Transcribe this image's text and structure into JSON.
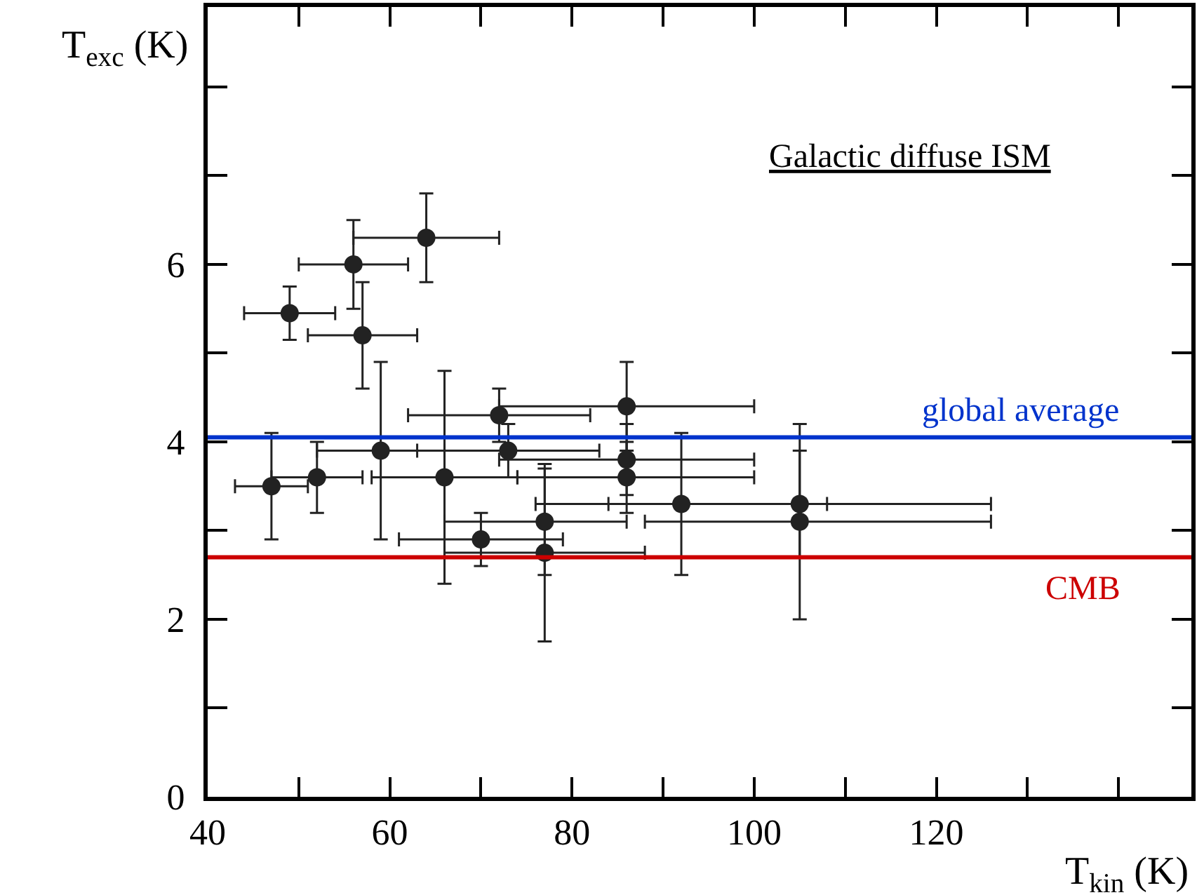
{
  "chart_data": {
    "type": "scatter",
    "xlabel": "T$_{kin}$ (K)",
    "ylabel": "T$_{exc}$ (K)",
    "annotations": [
      "Galactic diffuse ISM"
    ],
    "marker": "circle",
    "grid": false,
    "xlim": [
      40,
      148
    ],
    "xticks": [
      40,
      {
        "value": 50,
        "label": null
      },
      60,
      {
        "value": 70,
        "label": null
      },
      80,
      {
        "value": 90,
        "label": null
      },
      100,
      {
        "value": 110,
        "label": null
      },
      120,
      {
        "value": 130,
        "label": null
      },
      {
        "value": 140,
        "label": null
      }
    ],
    "ylim": [
      0,
      8.9
    ],
    "yticks": [
      0,
      {
        "value": 1,
        "label": null
      },
      2,
      {
        "value": 3,
        "label": null
      },
      4,
      {
        "value": 5,
        "label": null
      },
      6,
      {
        "value": 7,
        "label": null
      },
      {
        "value": 8,
        "label": null
      }
    ],
    "x": [
      49,
      56,
      64,
      57,
      47,
      52,
      59,
      66,
      72,
      73,
      70,
      77,
      77,
      86,
      86,
      86,
      92,
      105,
      105
    ],
    "series": [
      {
        "color": "#222222",
        "values": [
          5.45,
          6.0,
          6.3,
          5.2,
          3.5,
          3.6,
          3.9,
          3.6,
          4.3,
          3.9,
          2.9,
          3.1,
          2.75,
          4.4,
          3.8,
          3.6,
          3.3,
          3.3,
          3.1
        ],
        "errors": [
          [
            5.15,
            5.75
          ],
          [
            5.5,
            6.5
          ],
          [
            5.8,
            6.8
          ],
          [
            4.6,
            5.8
          ],
          [
            2.9,
            4.1
          ],
          [
            3.2,
            4.0
          ],
          [
            2.9,
            4.9
          ],
          [
            2.4,
            4.8
          ],
          [
            4.0,
            4.6
          ],
          [
            3.6,
            4.2
          ],
          [
            2.6,
            3.2
          ],
          [
            2.5,
            3.7
          ],
          [
            1.75,
            3.75
          ],
          [
            3.9,
            4.9
          ],
          [
            3.4,
            4.2
          ],
          [
            3.2,
            4.0
          ],
          [
            2.5,
            4.1
          ],
          [
            2.7,
            3.9
          ],
          [
            2.0,
            4.2
          ]
        ],
        "xerrors": [
          [
            44,
            54
          ],
          [
            50,
            62
          ],
          [
            56,
            72
          ],
          [
            51,
            63
          ],
          [
            43,
            51
          ],
          [
            47,
            57
          ],
          [
            52,
            66
          ],
          [
            58,
            74
          ],
          [
            62,
            82
          ],
          [
            63,
            83
          ],
          [
            61,
            79
          ],
          [
            66,
            86
          ],
          [
            66,
            88
          ],
          [
            72,
            100
          ],
          [
            72,
            100
          ],
          [
            74,
            100
          ],
          [
            76,
            108
          ],
          [
            84,
            126
          ],
          [
            88,
            126
          ]
        ]
      }
    ],
    "ref_lines": [
      {
        "axis": "y",
        "value": 4.05,
        "label": "global average",
        "color": "#0033cc"
      },
      {
        "axis": "y",
        "value": 2.7,
        "label": "CMB",
        "color": "#cc0000"
      }
    ]
  }
}
